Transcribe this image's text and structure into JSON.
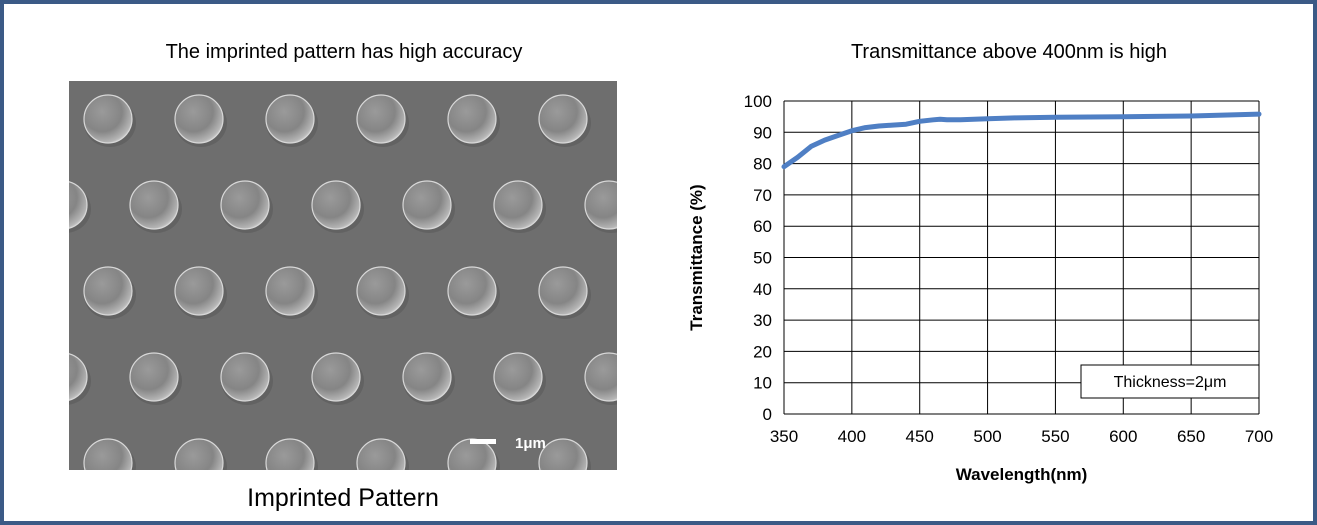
{
  "left_panel": {
    "title": "The imprinted pattern has high accuracy",
    "caption": "Imprinted Pattern",
    "scale_bar_label": "1μm"
  },
  "right_panel": {
    "title": "Transmittance above 400nm is high"
  },
  "colors": {
    "frame": "#3b5a86",
    "series_line": "#4f7fc4",
    "sem_background": "#6e6e6e"
  },
  "chart_data": {
    "type": "line",
    "title": "Transmittance above 400nm is high",
    "xlabel": "Wavelength(nm)",
    "ylabel": "Transmittance (%)",
    "xlim": [
      350,
      700
    ],
    "ylim": [
      0,
      100
    ],
    "x_ticks": [
      350,
      400,
      450,
      500,
      550,
      600,
      650,
      700
    ],
    "y_ticks": [
      0,
      10,
      20,
      30,
      40,
      50,
      60,
      70,
      80,
      90,
      100
    ],
    "grid": true,
    "annotation": "Thickness=2μm",
    "series": [
      {
        "x": [
          350,
          360,
          370,
          380,
          390,
          400,
          410,
          420,
          430,
          440,
          450,
          460,
          465,
          470,
          480,
          500,
          520,
          550,
          600,
          650,
          700
        ],
        "y": [
          79,
          82,
          85.5,
          87.5,
          89,
          90.5,
          91.5,
          92,
          92.3,
          92.6,
          93.5,
          94,
          94.2,
          94,
          94,
          94.3,
          94.6,
          94.8,
          95,
          95.2,
          95.8
        ]
      }
    ]
  }
}
